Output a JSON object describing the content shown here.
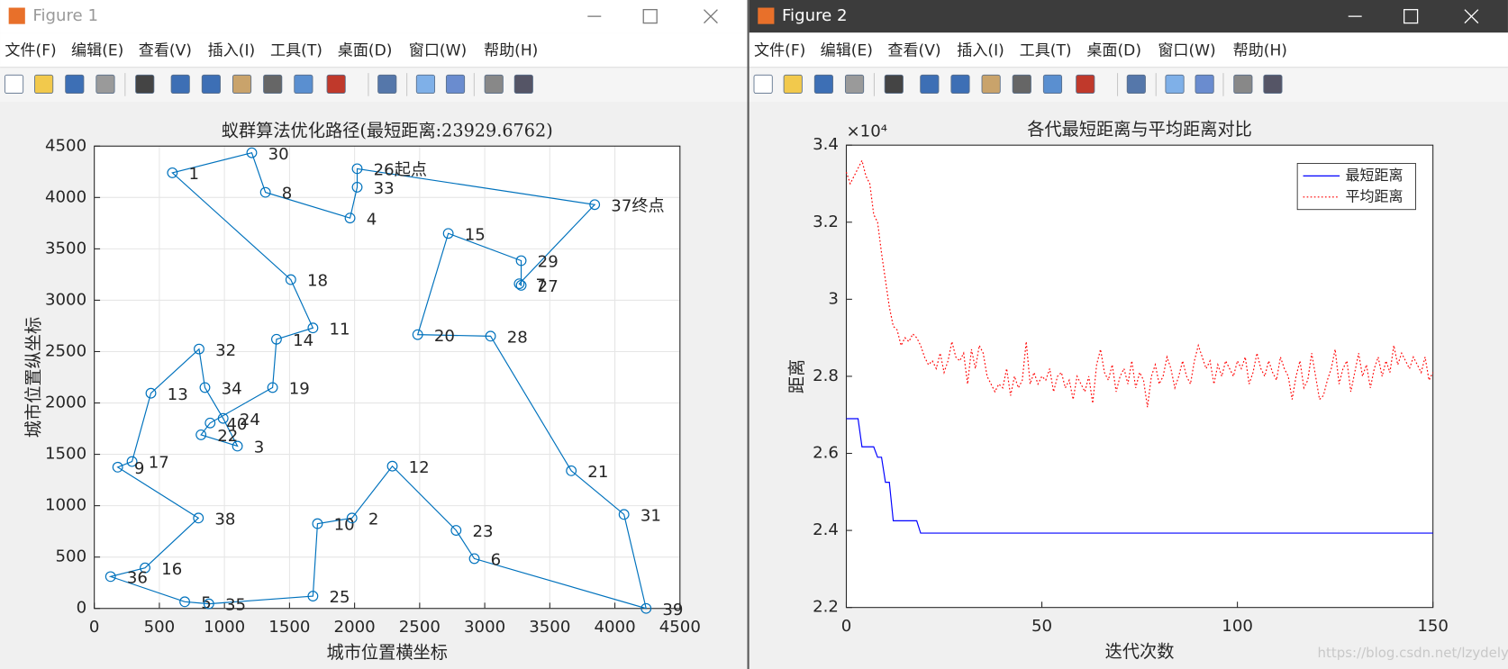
{
  "windows": [
    {
      "title": "Figure 1",
      "menu": [
        "文件(F)",
        "编辑(E)",
        "查看(V)",
        "插入(I)",
        "工具(T)",
        "桌面(D)",
        "窗口(W)",
        "帮助(H)"
      ]
    },
    {
      "title": "Figure 2",
      "menu": [
        "文件(F)",
        "编辑(E)",
        "查看(V)",
        "插入(I)",
        "工具(T)",
        "桌面(D)",
        "窗口(W)",
        "帮助(H)"
      ]
    }
  ],
  "watermark": "https://blog.csdn.net/lzydelyc",
  "chart_data": [
    {
      "type": "line",
      "title": "蚁群算法优化路径(最短距离:23929.6762)",
      "xlabel": "城市位置横坐标",
      "ylabel": "城市位置纵坐标",
      "xlim": [
        0,
        4500
      ],
      "ylim": [
        0,
        4500
      ],
      "xticks": [
        0,
        500,
        1000,
        1500,
        2000,
        2500,
        3000,
        3500,
        4000,
        4500
      ],
      "yticks": [
        0,
        500,
        1000,
        1500,
        2000,
        2500,
        3000,
        3500,
        4000,
        4500
      ],
      "grid": true,
      "series": [
        {
          "color": "#0072bd",
          "marker": "o",
          "closed": true,
          "linestyle": "solid",
          "x": [
            2020,
            2020,
            1965,
            1315,
            1210,
            600,
            1510,
            1680,
            1400,
            1370,
            890,
            820,
            1100,
            990,
            850,
            805,
            435,
            290,
            180,
            800,
            390,
            125,
            695,
            880,
            1680,
            1715,
            1980,
            2290,
            2780,
            2920,
            4240,
            4070,
            3665,
            3045,
            2485,
            2720,
            3280,
            3280,
            3265,
            3845
          ],
          "values": [
            4280,
            4100,
            3800,
            4050,
            4435,
            4240,
            3200,
            2730,
            2620,
            2150,
            1805,
            1690,
            1580,
            1850,
            2150,
            2525,
            2095,
            1430,
            1375,
            880,
            395,
            310,
            65,
            45,
            120,
            825,
            880,
            1385,
            760,
            485,
            0,
            915,
            1340,
            2650,
            2665,
            3650,
            3385,
            3145,
            3160,
            3930
          ],
          "point_labels": [
            "26起点",
            "33",
            "4",
            "8",
            "30",
            "1",
            "18",
            "11",
            "14",
            "19",
            "40",
            "22",
            "3",
            "24",
            "34",
            "32",
            "13",
            "17",
            "9",
            "38",
            "16",
            "36",
            "5",
            "35",
            "25",
            "10",
            "2",
            "12",
            "23",
            "6",
            "39",
            "31",
            "21",
            "28",
            "20",
            "15",
            "29",
            "27",
            "7",
            "37终点"
          ]
        }
      ]
    },
    {
      "type": "line",
      "title": "各代最短距离与平均距离对比",
      "xlabel": "迭代次数",
      "ylabel": "距离",
      "y_multiplier": "×10⁴",
      "xlim": [
        0,
        150
      ],
      "ylim": [
        2.2,
        3.4
      ],
      "xticks": [
        0,
        50,
        100,
        150
      ],
      "yticks": [
        2.2,
        2.4,
        2.6,
        2.8,
        3,
        3.2,
        3.4
      ],
      "grid": false,
      "legend": "northeast",
      "series": [
        {
          "name": "最短距离",
          "color": "#0000ff",
          "linestyle": "solid",
          "x": [
            0,
            3,
            4,
            7,
            8,
            9,
            10,
            11,
            12,
            18,
            19,
            150
          ],
          "values": [
            2.69,
            2.69,
            2.617,
            2.617,
            2.59,
            2.59,
            2.525,
            2.525,
            2.425,
            2.425,
            2.393,
            2.393
          ]
        },
        {
          "name": "平均距离",
          "color": "#ff0000",
          "linestyle": "dotted",
          "x": [
            0,
            1,
            2,
            3,
            4,
            5,
            6,
            7,
            8,
            9,
            10,
            11,
            12,
            13,
            14,
            15,
            16,
            17,
            18,
            19,
            20,
            21,
            22,
            23,
            24,
            25,
            26,
            27,
            28,
            29,
            30,
            31,
            32,
            33,
            34,
            35,
            36,
            37,
            38,
            39,
            40,
            41,
            42,
            43,
            44,
            45,
            46,
            47,
            48,
            49,
            50,
            51,
            52,
            53,
            54,
            55,
            56,
            57,
            58,
            59,
            60,
            61,
            62,
            63,
            64,
            65,
            66,
            67,
            68,
            69,
            70,
            71,
            72,
            73,
            74,
            75,
            76,
            77,
            78,
            79,
            80,
            81,
            82,
            83,
            84,
            85,
            86,
            87,
            88,
            89,
            90,
            91,
            92,
            93,
            94,
            95,
            96,
            97,
            98,
            99,
            100,
            101,
            102,
            103,
            104,
            105,
            106,
            107,
            108,
            109,
            110,
            111,
            112,
            113,
            114,
            115,
            116,
            117,
            118,
            119,
            120,
            121,
            122,
            123,
            124,
            125,
            126,
            127,
            128,
            129,
            130,
            131,
            132,
            133,
            134,
            135,
            136,
            137,
            138,
            139,
            140,
            141,
            142,
            143,
            144,
            145,
            146,
            147,
            148,
            149,
            150
          ],
          "values": [
            3.33,
            3.3,
            3.32,
            3.34,
            3.36,
            3.32,
            3.3,
            3.22,
            3.2,
            3.12,
            3.05,
            2.98,
            2.93,
            2.92,
            2.88,
            2.9,
            2.89,
            2.91,
            2.9,
            2.88,
            2.85,
            2.83,
            2.84,
            2.82,
            2.86,
            2.81,
            2.84,
            2.89,
            2.85,
            2.84,
            2.86,
            2.78,
            2.87,
            2.82,
            2.88,
            2.86,
            2.8,
            2.78,
            2.76,
            2.78,
            2.77,
            2.82,
            2.75,
            2.8,
            2.77,
            2.79,
            2.89,
            2.78,
            2.81,
            2.78,
            2.8,
            2.79,
            2.82,
            2.76,
            2.8,
            2.81,
            2.77,
            2.79,
            2.74,
            2.8,
            2.78,
            2.76,
            2.8,
            2.73,
            2.83,
            2.87,
            2.81,
            2.79,
            2.83,
            2.76,
            2.8,
            2.82,
            2.78,
            2.84,
            2.77,
            2.81,
            2.79,
            2.72,
            2.8,
            2.83,
            2.78,
            2.8,
            2.85,
            2.82,
            2.77,
            2.8,
            2.84,
            2.8,
            2.78,
            2.84,
            2.88,
            2.85,
            2.82,
            2.84,
            2.78,
            2.83,
            2.8,
            2.84,
            2.82,
            2.8,
            2.84,
            2.82,
            2.85,
            2.78,
            2.81,
            2.86,
            2.82,
            2.8,
            2.84,
            2.81,
            2.79,
            2.85,
            2.82,
            2.8,
            2.74,
            2.8,
            2.84,
            2.77,
            2.79,
            2.86,
            2.8,
            2.74,
            2.75,
            2.79,
            2.82,
            2.87,
            2.78,
            2.82,
            2.84,
            2.76,
            2.81,
            2.86,
            2.8,
            2.83,
            2.77,
            2.82,
            2.85,
            2.8,
            2.84,
            2.81,
            2.88,
            2.83,
            2.86,
            2.84,
            2.82,
            2.85,
            2.83,
            2.81,
            2.85,
            2.79,
            2.81
          ]
        }
      ]
    }
  ]
}
